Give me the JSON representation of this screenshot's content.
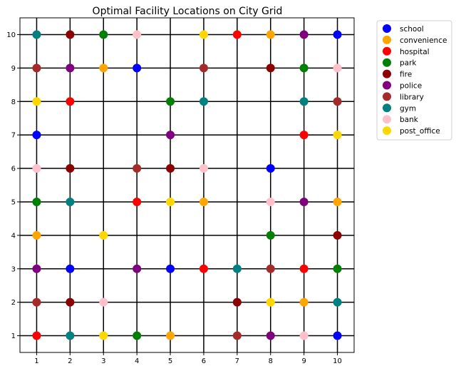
{
  "chart_data": {
    "type": "scatter",
    "title": "Optimal Facility Locations on City Grid",
    "xlabel": "",
    "ylabel": "",
    "xlim": [
      0.5,
      10.5
    ],
    "ylim": [
      0.5,
      10.5
    ],
    "x_ticks": [
      "1",
      "2",
      "3",
      "4",
      "5",
      "6",
      "7",
      "8",
      "9",
      "10"
    ],
    "y_ticks": [
      "1",
      "2",
      "3",
      "4",
      "5",
      "6",
      "7",
      "8",
      "9",
      "10"
    ],
    "grid": "integer streets drawn as black lines",
    "legend_position": "outside-top-right",
    "series": [
      {
        "name": "school",
        "color": "#0000ff",
        "points": [
          [
            1,
            7
          ],
          [
            2,
            3
          ],
          [
            4,
            9
          ],
          [
            5,
            3
          ],
          [
            8,
            6
          ],
          [
            10,
            10
          ],
          [
            10,
            1
          ]
        ]
      },
      {
        "name": "convenience",
        "color": "#ffa500",
        "points": [
          [
            1,
            4
          ],
          [
            3,
            9
          ],
          [
            5,
            1
          ],
          [
            6,
            5
          ],
          [
            8,
            10
          ],
          [
            9,
            2
          ],
          [
            10,
            5
          ]
        ]
      },
      {
        "name": "hospital",
        "color": "#ff0000",
        "points": [
          [
            1,
            1
          ],
          [
            2,
            8
          ],
          [
            4,
            5
          ],
          [
            6,
            3
          ],
          [
            7,
            10
          ],
          [
            9,
            7
          ],
          [
            9,
            3
          ]
        ]
      },
      {
        "name": "park",
        "color": "#008000",
        "points": [
          [
            1,
            5
          ],
          [
            3,
            10
          ],
          [
            4,
            1
          ],
          [
            5,
            8
          ],
          [
            8,
            4
          ],
          [
            9,
            9
          ],
          [
            10,
            3
          ]
        ]
      },
      {
        "name": "fire",
        "color": "#8b0000",
        "points": [
          [
            2,
            10
          ],
          [
            2,
            6
          ],
          [
            2,
            2
          ],
          [
            5,
            6
          ],
          [
            7,
            2
          ],
          [
            8,
            9
          ],
          [
            10,
            4
          ]
        ]
      },
      {
        "name": "police",
        "color": "#800080",
        "points": [
          [
            1,
            3
          ],
          [
            2,
            9
          ],
          [
            4,
            3
          ],
          [
            5,
            7
          ],
          [
            8,
            1
          ],
          [
            9,
            10
          ],
          [
            9,
            5
          ]
        ]
      },
      {
        "name": "library",
        "color": "#a52a2a",
        "points": [
          [
            1,
            9
          ],
          [
            1,
            2
          ],
          [
            4,
            6
          ],
          [
            6,
            9
          ],
          [
            7,
            1
          ],
          [
            8,
            3
          ],
          [
            10,
            8
          ]
        ]
      },
      {
        "name": "gym",
        "color": "#008080",
        "points": [
          [
            1,
            10
          ],
          [
            2,
            5
          ],
          [
            2,
            1
          ],
          [
            6,
            8
          ],
          [
            7,
            3
          ],
          [
            9,
            8
          ],
          [
            10,
            2
          ]
        ]
      },
      {
        "name": "bank",
        "color": "#ffc0cb",
        "points": [
          [
            1,
            6
          ],
          [
            3,
            2
          ],
          [
            4,
            10
          ],
          [
            6,
            6
          ],
          [
            8,
            5
          ],
          [
            9,
            1
          ],
          [
            10,
            9
          ]
        ]
      },
      {
        "name": "post_office",
        "color": "#ffd700",
        "points": [
          [
            1,
            8
          ],
          [
            3,
            4
          ],
          [
            3,
            1
          ],
          [
            5,
            5
          ],
          [
            6,
            10
          ],
          [
            8,
            2
          ],
          [
            10,
            7
          ]
        ]
      }
    ]
  }
}
